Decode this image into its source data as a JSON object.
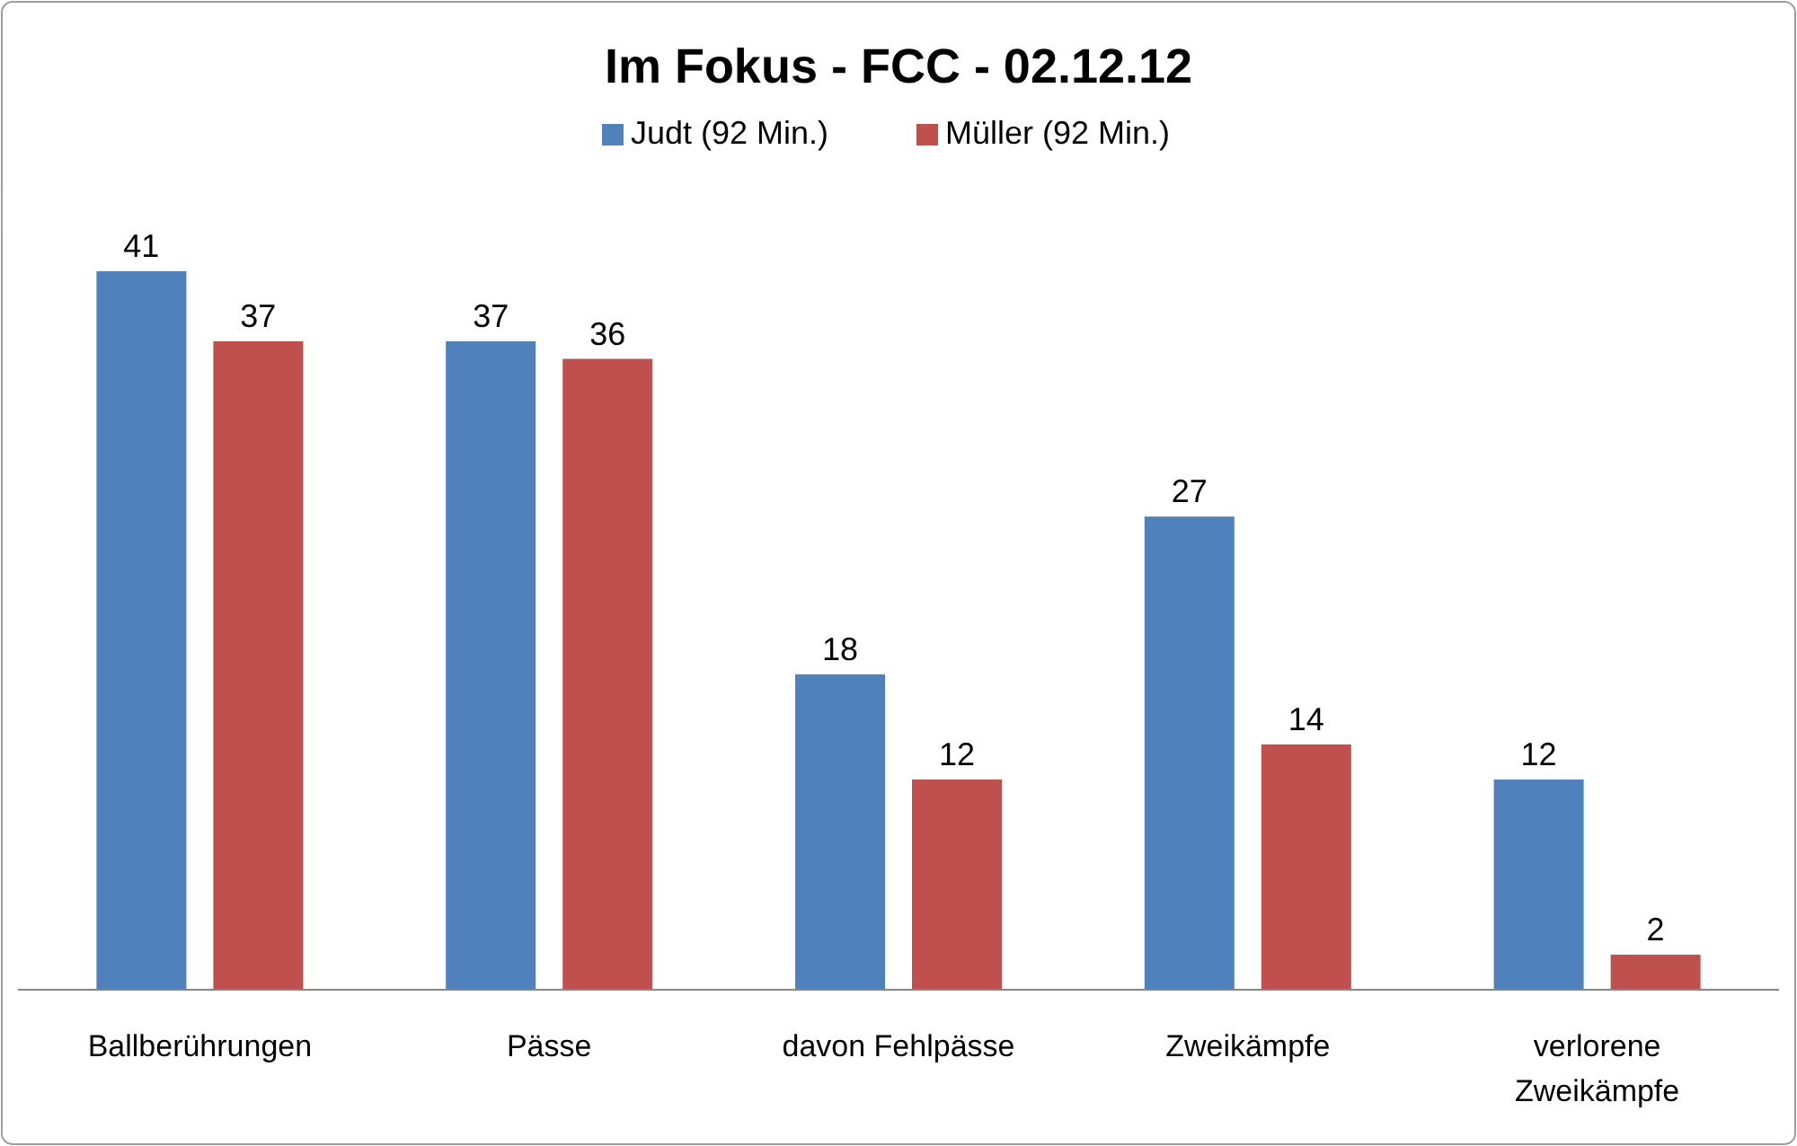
{
  "chart_data": {
    "type": "bar",
    "title": "Im Fokus - FCC - 02.12.12",
    "categories": [
      "Ballberührungen",
      "Pässe",
      "davon Fehlpässe",
      "Zweikämpfe",
      "verlorene Zweikämpfe"
    ],
    "series": [
      {
        "name": "Judt (92 Min.)",
        "color": "#4f81bd",
        "values": [
          41,
          37,
          18,
          27,
          12
        ]
      },
      {
        "name": "Müller (92 Min.)",
        "color": "#c0504d",
        "values": [
          37,
          36,
          12,
          14,
          2
        ]
      }
    ],
    "data_labels": true,
    "legend": "top"
  }
}
